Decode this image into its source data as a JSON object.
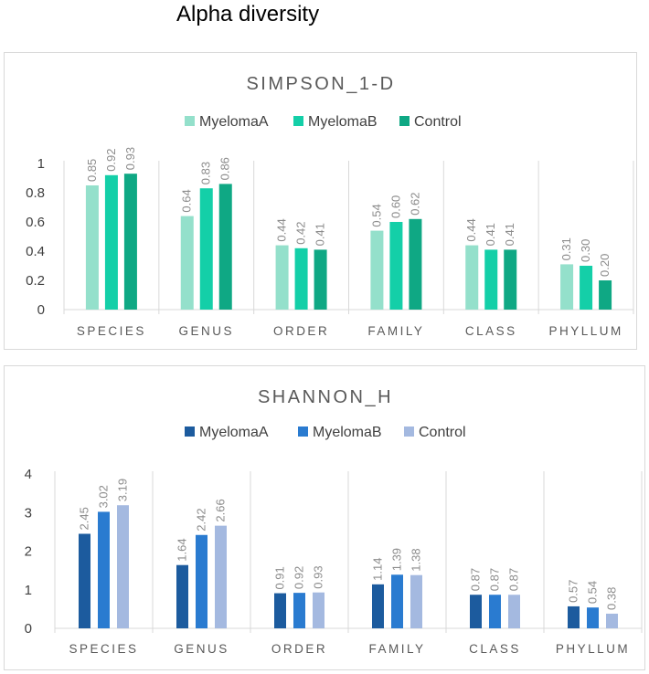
{
  "title": "Alpha diversity",
  "chart_data": [
    {
      "type": "bar",
      "title": "SIMPSON_1-D",
      "categories": [
        "SPECIES",
        "GENUS",
        "ORDER",
        "FAMILY",
        "CLASS",
        "PHYLLUM"
      ],
      "series": [
        {
          "name": "MyelomaA",
          "color": "#94e0cb",
          "values": [
            0.85,
            0.64,
            0.44,
            0.54,
            0.44,
            0.31
          ],
          "labels": [
            "0.85",
            "0.64",
            "0.44",
            "0.54",
            "0.44",
            "0.31"
          ]
        },
        {
          "name": "MyelomaB",
          "color": "#14cfa8",
          "values": [
            0.92,
            0.83,
            0.42,
            0.6,
            0.41,
            0.3
          ],
          "labels": [
            "0.92",
            "0.83",
            "0.42",
            "0.60",
            "0.41",
            "0.30"
          ]
        },
        {
          "name": "Control",
          "color": "#0fa884",
          "values": [
            0.93,
            0.86,
            0.41,
            0.62,
            0.41,
            0.2
          ],
          "labels": [
            "0.93",
            "0.86",
            "0.41",
            "0.62",
            "0.41",
            "0.20"
          ]
        }
      ],
      "ylim": [
        0,
        1
      ],
      "yticks": [
        "0",
        "0.2",
        "0.4",
        "0.6",
        "0.8",
        "1"
      ],
      "legend_position": "top",
      "xlabel": "",
      "ylabel": ""
    },
    {
      "type": "bar",
      "title": "SHANNON_H",
      "categories": [
        "SPECIES",
        "GENUS",
        "ORDER",
        "FAMILY",
        "CLASS",
        "PHYLLUM"
      ],
      "series": [
        {
          "name": "MyelomaA",
          "color": "#1c5b9e",
          "values": [
            2.45,
            1.64,
            0.91,
            1.14,
            0.87,
            0.57
          ],
          "labels": [
            "2.45",
            "1.64",
            "0.91",
            "1.14",
            "0.87",
            "0.57"
          ]
        },
        {
          "name": "MyelomaB",
          "color": "#2a7bd0",
          "values": [
            3.02,
            2.42,
            0.92,
            1.39,
            0.87,
            0.54
          ],
          "labels": [
            "3.02",
            "2.42",
            "0.92",
            "1.39",
            "0.87",
            "0.54"
          ]
        },
        {
          "name": "Control",
          "color": "#a4b9e0",
          "values": [
            3.19,
            2.66,
            0.93,
            1.38,
            0.87,
            0.38
          ],
          "labels": [
            "3.19",
            "2.66",
            "0.93",
            "1.38",
            "0.87",
            "0.38"
          ]
        }
      ],
      "ylim": [
        0,
        4
      ],
      "yticks": [
        "0",
        "1",
        "2",
        "3",
        "4"
      ],
      "legend_position": "top",
      "xlabel": "",
      "ylabel": ""
    }
  ]
}
